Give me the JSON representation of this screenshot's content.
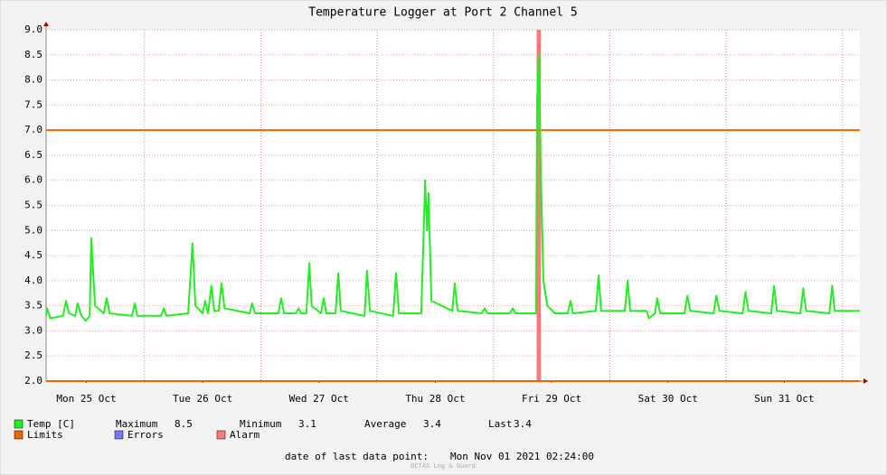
{
  "chart_data": {
    "type": "line",
    "title": "Temperature Logger at Port 2 Channel 5",
    "x": [
      3.7,
      3.9,
      4.6,
      7.2,
      7.8,
      8.4,
      9.7,
      10.2,
      11.0,
      11.9,
      12.7,
      13.0,
      13.8,
      15.6,
      16.2,
      16.8,
      21.4,
      22.0,
      22.5,
      27.4,
      28.0,
      28.5,
      33.0,
      33.9,
      34.5,
      36.0,
      36.5,
      37.1,
      37.8,
      38.4,
      39.3,
      39.9,
      40.5,
      45.7,
      46.2,
      46.8,
      51.6,
      52.2,
      52.8,
      55.2,
      55.8,
      56.3,
      57.4,
      58.0,
      58.5,
      60.4,
      61.0,
      61.5,
      63.4,
      64.0,
      64.5,
      69.4,
      69.9,
      70.5,
      75.3,
      75.9,
      76.5,
      81.1,
      81.9,
      82.3,
      82.6,
      83.2,
      87.5,
      88.0,
      88.6,
      93.6,
      94.2,
      94.8,
      99.4,
      100.0,
      100.5,
      104.8,
      105.0,
      105.4,
      105.8,
      106.3,
      107.1,
      108.7,
      111.3,
      111.9,
      112.4,
      117.1,
      117.7,
      118.2,
      123.1,
      123.7,
      124.2,
      127.6,
      128.1,
      129.3,
      129.8,
      130.4,
      135.4,
      136.0,
      136.6,
      141.4,
      142.0,
      142.6,
      147.4,
      148.0,
      148.6,
      153.3,
      153.9,
      154.5,
      159.3,
      159.9,
      160.5,
      165.3,
      165.9,
      166.4,
      171.6
    ],
    "series": [
      {
        "name": "Temp [C]",
        "color": "#22ee22",
        "values": [
          3.3,
          3.45,
          3.25,
          3.3,
          3.6,
          3.35,
          3.3,
          3.55,
          3.3,
          3.2,
          3.3,
          4.85,
          3.5,
          3.35,
          3.65,
          3.35,
          3.3,
          3.55,
          3.3,
          3.3,
          3.45,
          3.3,
          3.35,
          4.75,
          3.5,
          3.35,
          3.6,
          3.35,
          3.9,
          3.4,
          3.4,
          3.95,
          3.45,
          3.35,
          3.55,
          3.35,
          3.35,
          3.65,
          3.35,
          3.35,
          3.45,
          3.35,
          3.35,
          4.35,
          3.5,
          3.35,
          3.65,
          3.35,
          3.35,
          4.15,
          3.4,
          3.3,
          4.2,
          3.4,
          3.3,
          4.15,
          3.35,
          3.35,
          6.0,
          5.0,
          5.75,
          3.6,
          3.4,
          3.95,
          3.4,
          3.35,
          3.45,
          3.35,
          3.35,
          3.45,
          3.35,
          3.35,
          7.6,
          8.5,
          6.0,
          4.0,
          3.5,
          3.35,
          3.35,
          3.6,
          3.35,
          3.4,
          4.1,
          3.4,
          3.4,
          4.0,
          3.4,
          3.4,
          3.25,
          3.35,
          3.65,
          3.35,
          3.35,
          3.7,
          3.4,
          3.35,
          3.7,
          3.4,
          3.35,
          3.78,
          3.4,
          3.35,
          3.9,
          3.4,
          3.35,
          3.85,
          3.4,
          3.35,
          3.9,
          3.4,
          3.4
        ]
      }
    ],
    "xlim": [
      3.7,
      171.6
    ],
    "xticks": [
      {
        "value": 12,
        "label": "Mon 25 Oct"
      },
      {
        "value": 36,
        "label": "Tue 26 Oct"
      },
      {
        "value": 60,
        "label": "Wed 27 Oct"
      },
      {
        "value": 84,
        "label": "Thu 28 Oct"
      },
      {
        "value": 108,
        "label": "Fri 29 Oct"
      },
      {
        "value": 132,
        "label": "Sat 30 Oct"
      },
      {
        "value": 156,
        "label": "Sun 31 Oct"
      }
    ],
    "xgrid": [
      24,
      48,
      72,
      96,
      120,
      144,
      168
    ],
    "ylim": [
      2,
      9
    ],
    "yticks": [
      {
        "value": 2,
        "label": "2.0"
      },
      {
        "value": 2.5,
        "label": "2.5"
      },
      {
        "value": 3,
        "label": "3.0"
      },
      {
        "value": 3.5,
        "label": "3.5"
      },
      {
        "value": 4,
        "label": "4.0"
      },
      {
        "value": 4.5,
        "label": "4.5"
      },
      {
        "value": 5,
        "label": "5.0"
      },
      {
        "value": 5.5,
        "label": "5.5"
      },
      {
        "value": 6,
        "label": "6.0"
      },
      {
        "value": 6.5,
        "label": "6.5"
      },
      {
        "value": 7,
        "label": "7.0"
      },
      {
        "value": 7.5,
        "label": "7.5"
      },
      {
        "value": 8,
        "label": "8.0"
      },
      {
        "value": 8.5,
        "label": "8.5"
      },
      {
        "value": 9,
        "label": "9.0"
      }
    ],
    "grid": true,
    "limits": {
      "name": "Limits",
      "color": "#ee6600",
      "values": [
        7,
        2
      ]
    },
    "errors": {
      "name": "Errors",
      "color": "#7777ff"
    },
    "alarm": {
      "name": "Alarm",
      "color": "#ff7777",
      "x": [
        104.9,
        105.8
      ]
    },
    "stats": [
      {
        "label": "Maximum",
        "value": 8.5
      },
      {
        "label": "Minimum",
        "value": 3.1
      },
      {
        "label": "Average",
        "value": 3.4
      },
      {
        "label": "Last",
        "value": 3.4
      }
    ],
    "footer": {
      "label": "date of last data point:",
      "value": "Mon Nov 01 2021 02:24:00"
    },
    "watermark": "OCTAS Log & Guard"
  }
}
